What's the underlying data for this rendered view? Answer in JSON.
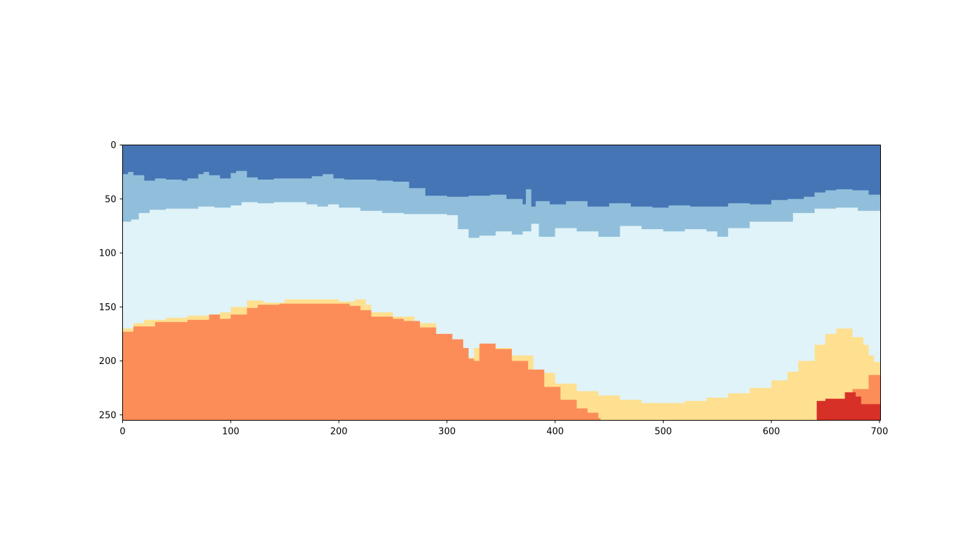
{
  "chart_data": {
    "type": "heatmap",
    "title": "",
    "xlabel": "",
    "ylabel": "",
    "xlim": [
      0,
      701
    ],
    "ylim": [
      255,
      0
    ],
    "x_ticks": [
      0,
      100,
      200,
      300,
      400,
      500,
      600,
      700
    ],
    "y_ticks": [
      0,
      50,
      100,
      150,
      200,
      250
    ],
    "x_tick_labels": [
      "0",
      "100",
      "200",
      "300",
      "400",
      "500",
      "600",
      "700"
    ],
    "y_tick_labels": [
      "0",
      "50",
      "100",
      "150",
      "200",
      "250"
    ],
    "grid": false,
    "colors": [
      "#4575b4",
      "#91bfdb",
      "#e0f3f8",
      "#fee090",
      "#fc8d59",
      "#d73027"
    ],
    "boundaries": [
      {
        "layer_below": 1,
        "x": [
          0,
          5,
          10,
          20,
          30,
          40,
          55,
          60,
          70,
          75,
          80,
          90,
          100,
          105,
          115,
          125,
          140,
          160,
          175,
          185,
          195,
          205,
          220,
          235,
          250,
          265,
          280,
          300,
          320,
          340,
          355,
          370,
          373,
          378,
          382,
          395,
          410,
          430,
          450,
          470,
          490,
          505,
          525,
          545,
          560,
          580,
          600,
          615,
          630,
          640,
          650,
          660,
          675,
          690,
          701
        ],
        "y": [
          27,
          25,
          28,
          33,
          31,
          32,
          33,
          31,
          27,
          25,
          28,
          31,
          26,
          24,
          30,
          32,
          31,
          31,
          29,
          27,
          31,
          32,
          32,
          33,
          34,
          40,
          47,
          48,
          47,
          46,
          50,
          55,
          41,
          57,
          52,
          55,
          52,
          57,
          54,
          57,
          58,
          56,
          57,
          57,
          54,
          55,
          51,
          50,
          48,
          44,
          42,
          41,
          42,
          46,
          46
        ]
      },
      {
        "layer_below": 2,
        "x": [
          0,
          8,
          15,
          25,
          40,
          55,
          70,
          85,
          100,
          110,
          125,
          140,
          160,
          170,
          180,
          190,
          200,
          220,
          240,
          260,
          280,
          300,
          310,
          320,
          330,
          345,
          360,
          370,
          378,
          385,
          400,
          420,
          440,
          460,
          480,
          500,
          520,
          540,
          550,
          560,
          580,
          600,
          620,
          640,
          660,
          680,
          701
        ],
        "y": [
          71,
          69,
          63,
          60,
          59,
          59,
          57,
          58,
          56,
          53,
          54,
          53,
          53,
          55,
          57,
          55,
          58,
          61,
          63,
          64,
          64,
          65,
          78,
          86,
          84,
          80,
          83,
          80,
          73,
          85,
          77,
          80,
          85,
          75,
          78,
          80,
          78,
          80,
          85,
          77,
          71,
          71,
          63,
          59,
          58,
          61,
          64
        ]
      },
      {
        "layer_below": 3,
        "x": [
          0,
          10,
          20,
          40,
          60,
          80,
          90,
          100,
          115,
          130,
          150,
          180,
          200,
          215,
          225,
          230,
          250,
          270,
          290,
          305,
          315,
          320,
          325,
          340,
          360,
          380,
          400,
          420,
          440,
          460,
          480,
          500,
          520,
          540,
          560,
          580,
          600,
          615,
          625,
          640,
          650,
          660,
          675,
          685,
          690,
          695,
          701
        ],
        "y": [
          170,
          165,
          162,
          160,
          158,
          157,
          155,
          150,
          144,
          146,
          143,
          143,
          145,
          143,
          148,
          155,
          159,
          165,
          175,
          182,
          190,
          197,
          188,
          188,
          195,
          211,
          221,
          228,
          232,
          236,
          239,
          239,
          237,
          234,
          230,
          225,
          218,
          210,
          200,
          185,
          175,
          170,
          178,
          185,
          195,
          201,
          188
        ]
      },
      {
        "layer_below": 4,
        "x": [
          0,
          10,
          30,
          60,
          80,
          90,
          100,
          115,
          125,
          145,
          165,
          190,
          210,
          220,
          230,
          250,
          260,
          275,
          290,
          305,
          315,
          320,
          325,
          330,
          345,
          360,
          375,
          390,
          405,
          420,
          430,
          440,
          442,
          645,
          660,
          675,
          690,
          701
        ],
        "y": [
          173,
          168,
          164,
          162,
          157,
          161,
          157,
          151,
          148,
          147,
          147,
          147,
          149,
          153,
          159,
          161,
          163,
          169,
          175,
          180,
          188,
          198,
          200,
          184,
          189,
          200,
          208,
          224,
          236,
          244,
          248,
          253,
          255,
          255,
          237,
          226,
          213,
          205
        ]
      },
      {
        "layer_below": 5,
        "x": [
          640,
          642,
          650,
          660,
          668,
          672,
          678,
          683,
          701
        ],
        "y": [
          255,
          237,
          235,
          235,
          229,
          229,
          233,
          240,
          240
        ]
      }
    ]
  }
}
